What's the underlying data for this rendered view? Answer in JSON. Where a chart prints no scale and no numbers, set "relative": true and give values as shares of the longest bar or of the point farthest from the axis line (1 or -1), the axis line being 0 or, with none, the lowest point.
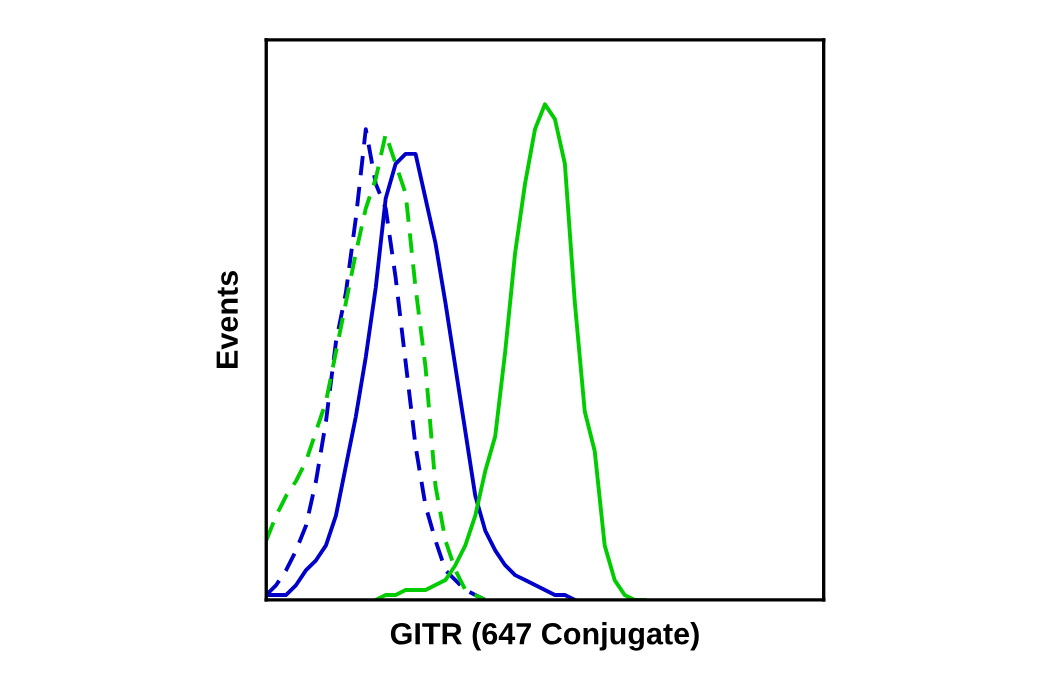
{
  "chart_data": {
    "type": "line",
    "relative": true,
    "xlabel": "GITR (647 Conjugate)",
    "ylabel": "Events",
    "legend": false,
    "categories": [
      null,
      null,
      null,
      null,
      null,
      null,
      null,
      null,
      null,
      null,
      null,
      null,
      null,
      null,
      null,
      null,
      null,
      null,
      null,
      null,
      null,
      null,
      null,
      null,
      null,
      null,
      null,
      null,
      null,
      null,
      null,
      null,
      null,
      null,
      null,
      null,
      null,
      null,
      null,
      null,
      null,
      null,
      null,
      null,
      null,
      null,
      null,
      null,
      null,
      null,
      null,
      null,
      null,
      null,
      null,
      null,
      null
    ],
    "series": [
      {
        "color": "#0000cc",
        "line_style": "dashed",
        "values": [
          0.01,
          0.03,
          0.06,
          0.1,
          0.15,
          0.24,
          0.36,
          0.52,
          0.62,
          0.77,
          0.95,
          0.84,
          0.79,
          0.65,
          0.48,
          0.31,
          0.19,
          0.12,
          0.06,
          0.04,
          0.02,
          0.01,
          0,
          null,
          null,
          null,
          null,
          null,
          null,
          null,
          null,
          null,
          null,
          null,
          null,
          null,
          null,
          null,
          null,
          null,
          null,
          null,
          null,
          null,
          null,
          null,
          null,
          null,
          null,
          null,
          null,
          null,
          null,
          null,
          null,
          null,
          null
        ]
      },
      {
        "color": "#00cc00",
        "line_style": "dashed",
        "values": [
          0.12,
          0.17,
          0.21,
          0.24,
          0.28,
          0.34,
          0.4,
          0.5,
          0.6,
          0.7,
          0.79,
          0.85,
          0.94,
          0.88,
          0.82,
          0.63,
          0.47,
          0.23,
          0.12,
          0.06,
          0.02,
          0.01,
          0,
          null,
          null,
          null,
          null,
          null,
          null,
          null,
          null,
          null,
          null,
          null,
          null,
          null,
          null,
          null,
          null,
          null,
          null,
          null,
          null,
          null,
          null,
          null,
          null,
          null,
          null,
          null,
          null,
          null,
          null,
          null,
          null,
          null,
          null
        ]
      },
      {
        "color": "#0000cc",
        "line_style": "solid",
        "values": [
          0.01,
          0.01,
          0.01,
          0.03,
          0.06,
          0.08,
          0.11,
          0.17,
          0.27,
          0.37,
          0.49,
          0.63,
          0.81,
          0.88,
          0.9,
          0.9,
          0.81,
          0.72,
          0.6,
          0.47,
          0.34,
          0.21,
          0.14,
          0.1,
          0.07,
          0.05,
          0.04,
          0.03,
          0.02,
          0.01,
          0.01,
          0,
          null,
          null,
          null,
          null,
          null,
          null,
          null,
          null,
          null,
          null,
          null,
          null,
          null,
          null,
          null,
          null,
          null,
          null,
          null,
          null,
          null,
          null,
          null,
          null,
          null
        ]
      },
      {
        "color": "#00cc00",
        "line_style": "solid",
        "values": [
          null,
          null,
          null,
          null,
          null,
          null,
          null,
          null,
          null,
          null,
          null,
          0,
          0.01,
          0.01,
          0.02,
          0.02,
          0.02,
          0.03,
          0.04,
          0.07,
          0.11,
          0.17,
          0.26,
          0.33,
          0.5,
          0.7,
          0.84,
          0.95,
          1.0,
          0.97,
          0.88,
          0.6,
          0.38,
          0.3,
          0.11,
          0.04,
          0.01,
          0,
          0,
          null,
          null,
          null,
          null,
          null,
          null,
          null,
          null,
          null,
          null,
          null,
          null,
          null,
          null,
          null,
          null,
          null,
          null
        ]
      }
    ]
  }
}
